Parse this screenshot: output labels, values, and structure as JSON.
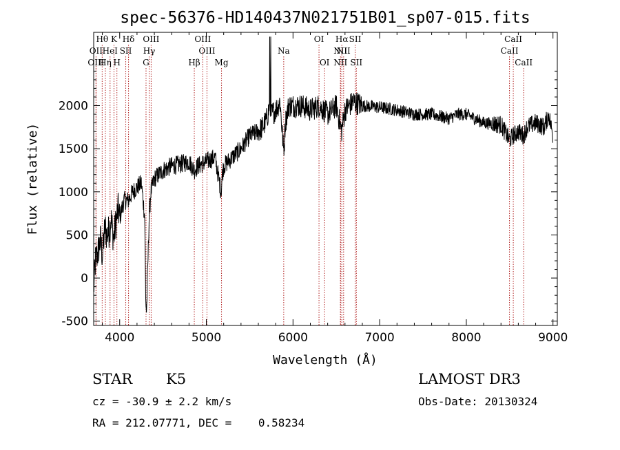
{
  "chart_data": {
    "type": "line",
    "title": "spec-56376-HD140437N021751B01_sp07-015.fits",
    "xlabel": "Wavelength (Å)",
    "ylabel": "Flux (relative)",
    "xlim": [
      3700,
      9050
    ],
    "ylim": [
      -550,
      2850
    ],
    "xticks": [
      4000,
      5000,
      6000,
      7000,
      8000,
      9000
    ],
    "yticks": [
      -500,
      0,
      500,
      1000,
      1500,
      2000
    ],
    "spectrum_anchors": {
      "x": [
        3700,
        3720,
        3750,
        3780,
        3800,
        3830,
        3850,
        3880,
        3900,
        3930,
        3950,
        3980,
        4000,
        4050,
        4100,
        4150,
        4200,
        4250,
        4290,
        4300,
        4310,
        4330,
        4340,
        4360,
        4400,
        4450,
        4500,
        4600,
        4700,
        4800,
        4860,
        4900,
        5000,
        5100,
        5170,
        5185,
        5200,
        5300,
        5400,
        5500,
        5600,
        5650,
        5700,
        5730,
        5750,
        5800,
        5850,
        5890,
        5900,
        5910,
        5950,
        6000,
        6100,
        6200,
        6300,
        6400,
        6500,
        6560,
        6600,
        6700,
        6800,
        7000,
        7200,
        7400,
        7600,
        7800,
        7900,
        8000,
        8200,
        8400,
        8498,
        8540,
        8600,
        8662,
        8700,
        8800,
        8900,
        8950,
        9000
      ],
      "y": [
        -130,
        200,
        300,
        450,
        250,
        600,
        500,
        550,
        700,
        450,
        600,
        800,
        700,
        900,
        900,
        1000,
        1050,
        1100,
        700,
        -250,
        -400,
        350,
        700,
        1000,
        1150,
        1200,
        1250,
        1300,
        1320,
        1350,
        1250,
        1300,
        1350,
        1400,
        1000,
        1200,
        1300,
        1400,
        1500,
        1650,
        1700,
        1750,
        1850,
        2000,
        1900,
        1950,
        2050,
        1500,
        1550,
        1800,
        2000,
        2000,
        2000,
        1950,
        2000,
        1900,
        2000,
        1700,
        1950,
        2050,
        2000,
        1980,
        1950,
        1900,
        1900,
        1850,
        1900,
        1900,
        1800,
        1780,
        1600,
        1650,
        1700,
        1650,
        1750,
        1800,
        1750,
        1900,
        1650
      ]
    },
    "spectral_lines": [
      {
        "label": "Hθ",
        "wl": 3798,
        "row": 0
      },
      {
        "label": "K",
        "wl": 3934,
        "row": 0
      },
      {
        "label": "Hδ",
        "wl": 4102,
        "row": 0
      },
      {
        "label": "OIII",
        "wl": 4363,
        "row": 0
      },
      {
        "label": "OIII",
        "wl": 4959,
        "row": 0
      },
      {
        "label": "OI",
        "wl": 6300,
        "row": 0
      },
      {
        "label": "Hα",
        "wl": 6563,
        "row": 0
      },
      {
        "label": "SII",
        "wl": 6717,
        "row": 0
      },
      {
        "label": "CaII",
        "wl": 8542,
        "row": 0
      },
      {
        "label": "OII",
        "wl": 3727,
        "row": 1
      },
      {
        "label": "HeI",
        "wl": 3889,
        "row": 1
      },
      {
        "label": "SII",
        "wl": 4070,
        "row": 1
      },
      {
        "label": "Hγ",
        "wl": 4340,
        "row": 1
      },
      {
        "label": "OIII",
        "wl": 5007,
        "row": 1
      },
      {
        "label": "Na",
        "wl": 5893,
        "row": 1
      },
      {
        "label": "NII",
        "wl": 6548,
        "row": 1
      },
      {
        "label": "NII",
        "wl": 6584,
        "row": 1
      },
      {
        "label": "CaII",
        "wl": 8498,
        "row": 1
      },
      {
        "label": "OIII",
        "wl": 3727,
        "row": 2
      },
      {
        "label": "Hη",
        "wl": 3835,
        "row": 2
      },
      {
        "label": "H",
        "wl": 3968,
        "row": 2
      },
      {
        "label": "G",
        "wl": 4304,
        "row": 2
      },
      {
        "label": "Hβ",
        "wl": 4861,
        "row": 2
      },
      {
        "label": "Mg",
        "wl": 5175,
        "row": 2
      },
      {
        "label": "OI",
        "wl": 6364,
        "row": 2
      },
      {
        "label": "NII",
        "wl": 6548,
        "row": 2
      },
      {
        "label": "SII",
        "wl": 6731,
        "row": 2
      },
      {
        "label": "CaII",
        "wl": 8662,
        "row": 2
      }
    ]
  },
  "footer": {
    "object_class": "STAR",
    "subclass": "K5",
    "survey": "LAMOST DR3",
    "cz": "cz = -30.9 ± 2.2 km/s",
    "obs_date": "Obs-Date: 20130324",
    "coords": "RA = 212.07771, DEC =    0.58234"
  },
  "colors": {
    "spectrum": "#000000",
    "line_marker": "#b22222",
    "axes": "#000000"
  }
}
